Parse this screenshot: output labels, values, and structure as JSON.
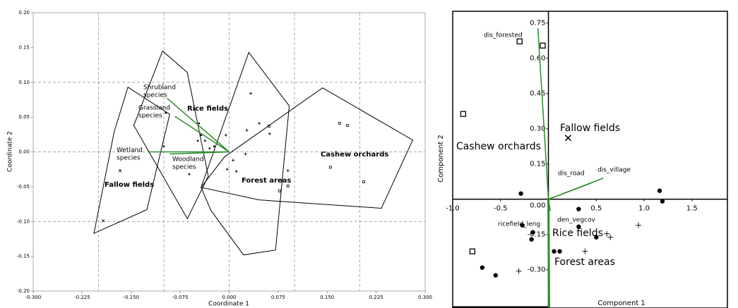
{
  "chart_data": [
    {
      "type": "scatter",
      "xlabel": "Coordinate 1",
      "ylabel": "Coordinate 2",
      "xlim": [
        -0.3,
        0.3
      ],
      "ylim": [
        -0.2,
        0.2
      ],
      "xticks": [
        {
          "value": -0.3,
          "label": "-0.300"
        },
        {
          "value": -0.225,
          "label": "-0.225"
        },
        {
          "value": -0.15,
          "label": "-0.150"
        },
        {
          "value": -0.075,
          "label": "-0.075"
        },
        {
          "value": 0,
          "label": "0.000"
        },
        {
          "value": 0.075,
          "label": "0.075"
        },
        {
          "value": 0.15,
          "label": "0.150"
        },
        {
          "value": 0.225,
          "label": "0.225"
        },
        {
          "value": 0.3,
          "label": "0.300"
        }
      ],
      "yticks": [
        {
          "value": 0.2,
          "label": "0.20"
        },
        {
          "value": 0.15,
          "label": "0.15"
        },
        {
          "value": 0.1,
          "label": "0.10"
        },
        {
          "value": 0.05,
          "label": "0.05"
        },
        {
          "value": 0,
          "label": "0.00"
        },
        {
          "value": -0.05,
          "label": "-0.05"
        },
        {
          "value": -0.1,
          "label": "-0.10"
        },
        {
          "value": -0.15,
          "label": "-0.15"
        },
        {
          "value": -0.2,
          "label": "-0.20"
        }
      ],
      "xgrid": [
        -0.2,
        -0.1,
        0,
        0.1,
        0.2
      ],
      "ygrid": [
        -0.1,
        0,
        0.1
      ],
      "groups": [
        {
          "label": "Fallow fields",
          "marker": "x",
          "color": "#000000",
          "hull_x": [
            -0.207,
            -0.176,
            -0.155,
            -0.091,
            -0.126
          ],
          "hull_y": [
            -0.117,
            0.029,
            0.093,
            0.054,
            -0.083
          ],
          "x": [
            -0.167,
            -0.193
          ],
          "y": [
            -0.027,
            -0.099
          ]
        },
        {
          "label": "Rice fields",
          "marker": "dot",
          "color": "#000000",
          "hull_x": [
            -0.102,
            -0.064,
            -0.032,
            -0.064,
            -0.146
          ],
          "hull_y": [
            0.145,
            0.114,
            -0.035,
            -0.096,
            0.038
          ],
          "x": [
            -0.097,
            -0.1,
            -0.061,
            -0.046,
            -0.043,
            -0.037,
            -0.03,
            -0.023,
            -0.048
          ],
          "y": [
            0.056,
            0.008,
            -0.032,
            0.041,
            0.024,
            0.016,
            0.005,
            0.008,
            0.016
          ]
        },
        {
          "label": "Forest areas",
          "marker": "plus",
          "color": "#000000",
          "hull_x": [
            0.03,
            0.092,
            0.071,
            0.022,
            -0.028,
            -0.043
          ],
          "hull_y": [
            0.143,
            0.066,
            -0.141,
            -0.148,
            -0.084,
            -0.051
          ],
          "x": [
            0.033,
            0.046,
            0.027,
            -0.005,
            -0.003,
            0.011,
            0.025,
            0.062,
            0.09,
            0.006
          ],
          "y": [
            0.084,
            0.041,
            0.031,
            0.024,
            -0.025,
            -0.028,
            -0.003,
            0.026,
            -0.027,
            -0.012
          ]
        },
        {
          "label": "Cashew orchards",
          "marker": "square",
          "color": "#000000",
          "hull_x": [
            0.143,
            0.281,
            0.233,
            0.046,
            -0.043,
            -0.007
          ],
          "hull_y": [
            0.092,
            0.017,
            -0.081,
            -0.069,
            -0.051,
            -0.007
          ],
          "x": [
            0.169,
            0.181,
            0.155,
            0.206,
            0.061,
            0.09,
            0.077
          ],
          "y": [
            0.041,
            0.038,
            -0.022,
            -0.043,
            0.037,
            -0.049,
            -0.056
          ]
        }
      ],
      "vectors": [
        {
          "label_lines": [
            "Shrubland",
            "species"
          ],
          "color": "#e07b00",
          "line_color": "#2e8b2e",
          "x": -0.095,
          "y": 0.077
        },
        {
          "label_lines": [
            "Grassland",
            "species"
          ],
          "color": "#e8c000",
          "line_color": "#2e8b2e",
          "x": -0.083,
          "y": 0.051
        },
        {
          "label_lines": [
            "Wetland",
            "species"
          ],
          "color": "#3a8fd8",
          "line_color": "#2e8b2e",
          "x": -0.122,
          "y": 0
        },
        {
          "label_lines": [
            "Woodland",
            "species"
          ],
          "color": "#2e8b2e",
          "line_color": "#2e8b2e",
          "x": -0.091,
          "y": -0.003
        }
      ]
    },
    {
      "type": "scatter",
      "xlabel": "Component 1",
      "ylabel": "Component 2",
      "xlim": [
        -1.0,
        1.87
      ],
      "ylim": [
        -0.463,
        0.8
      ],
      "xticks": [
        {
          "value": -1.0,
          "label": "-1.0"
        },
        -0.5,
        0.5,
        {
          "value": 1.0,
          "label": "1.0"
        },
        1.5
      ],
      "yticks": [
        0.75,
        {
          "value": 0.6,
          "label": "0.60"
        },
        0.45,
        {
          "value": 0.3,
          "label": "0.30"
        },
        0.15,
        {
          "value": 0,
          "label": "0.00"
        },
        -0.15,
        {
          "value": -0.3,
          "label": "-0.30"
        }
      ],
      "groups": [
        {
          "label": "Cashew orchards",
          "marker": "square",
          "color": "#a020c0",
          "x": [
            -0.89,
            -0.301,
            -0.059,
            -0.794
          ],
          "y": [
            0.363,
            0.672,
            0.654,
            -0.222
          ]
        },
        {
          "label": "Fallow fields",
          "marker": "x",
          "color": "#a020c0",
          "x": [
            0.206
          ],
          "y": [
            0.261
          ]
        },
        {
          "label": "Rice fields",
          "marker": "dot",
          "color": "#a020c0",
          "x": [
            -0.287,
            -0.272,
            -0.162,
            -0.176,
            -0.691,
            -0.551,
            0.059,
            0.118,
            0.316,
            0.5,
            1.162,
            1.191,
            0.316
          ],
          "y": [
            0.024,
            -0.111,
            -0.141,
            -0.171,
            -0.291,
            -0.324,
            -0.222,
            -0.222,
            -0.042,
            -0.162,
            0.036,
            -0.009,
            -0.117
          ]
        },
        {
          "label": "Forest areas",
          "marker": "plus",
          "color": "#a020c0",
          "x": [
            -0.309,
            0.382,
            0.61,
            0.647,
            0.941
          ],
          "y": [
            -0.306,
            -0.222,
            -0.147,
            -0.162,
            -0.111
          ]
        }
      ],
      "vectors": [
        {
          "label_lines": [
            "dis_forested"
          ],
          "color": "#2e8b2e",
          "line_color": "#2e8b2e",
          "x": -0.11,
          "y": 0.729
        },
        {
          "label_lines": [
            "dis_road"
          ],
          "color": "#2e8b2e",
          "line_color": "#2e8b2e",
          "x": 0.449,
          "y": 0.069
        },
        {
          "label_lines": [
            "dis_village"
          ],
          "color": "#2e8b2e",
          "line_color": "#2e8b2e",
          "x": 0.574,
          "y": 0.09
        },
        {
          "label_lines": [
            "den_vegcov"
          ],
          "color": "#2e8b2e",
          "line_color": "#2e8b2e",
          "x": 0.02,
          "y": -0.05
        },
        {
          "label_lines": [
            "ricefield_leng"
          ],
          "color": "#2e8b2e",
          "line_color": "#2e8b2e",
          "x": 0.007,
          "y": -0.462
        }
      ]
    }
  ]
}
